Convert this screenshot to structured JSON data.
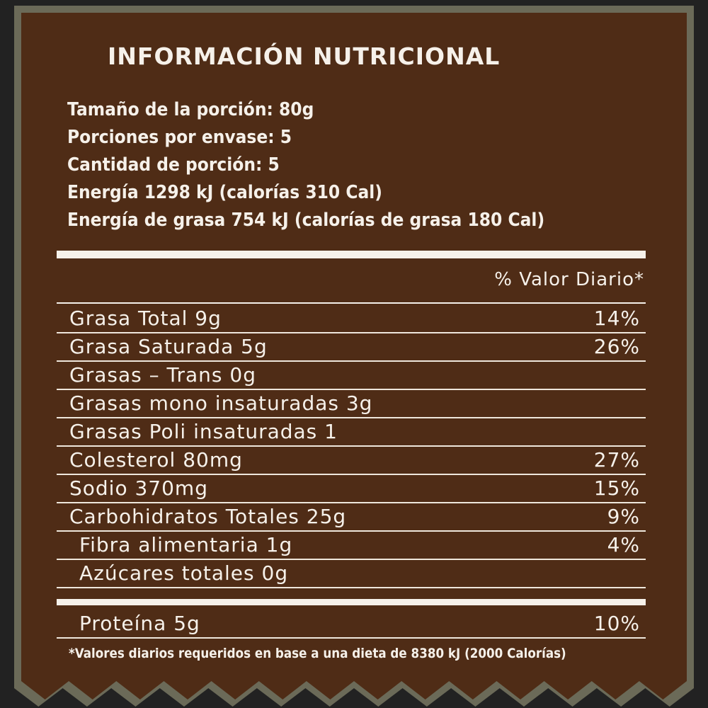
{
  "title": "INFORMACIÓN NUTRICIONAL",
  "info": [
    "Tamaño de la porción: 80g",
    "Porciones por envase: 5",
    "Cantidad de porción: 5",
    "Energía 1298 kJ (calorías 310 Cal)",
    "Energía de grasa 754 kJ (calorías de grasa 180 Cal)"
  ],
  "daily_value_header": "% Valor Diario*",
  "rows": [
    {
      "label": "Grasa Total 9g",
      "pct": "14%"
    },
    {
      "label": "Grasa Saturada 5g",
      "pct": "26%"
    },
    {
      "label": "Grasas – Trans 0g",
      "pct": ""
    },
    {
      "label": "Grasas mono insaturadas 3g",
      "pct": ""
    },
    {
      "label": "Grasas Poli insaturadas 1",
      "pct": ""
    },
    {
      "label": "Colesterol 80mg",
      "pct": "27%"
    },
    {
      "label": "Sodio 370mg",
      "pct": "15%"
    },
    {
      "label": "Carbohidratos Totales 25g",
      "pct": "9%"
    },
    {
      "label": "Fibra alimentaria 1g",
      "pct": "4%"
    },
    {
      "label": "Azúcares totales 0g",
      "pct": ""
    }
  ],
  "protein": {
    "label": "Proteína 5g",
    "pct": "10%"
  },
  "footnote": "*Valores diarios requeridos en base a una dieta de 8380 kJ (2000 Calorías)",
  "colors": {
    "background": "#222222",
    "border": "#6b6a58",
    "panel": "#4f2c16",
    "text": "#f6f1ea"
  }
}
